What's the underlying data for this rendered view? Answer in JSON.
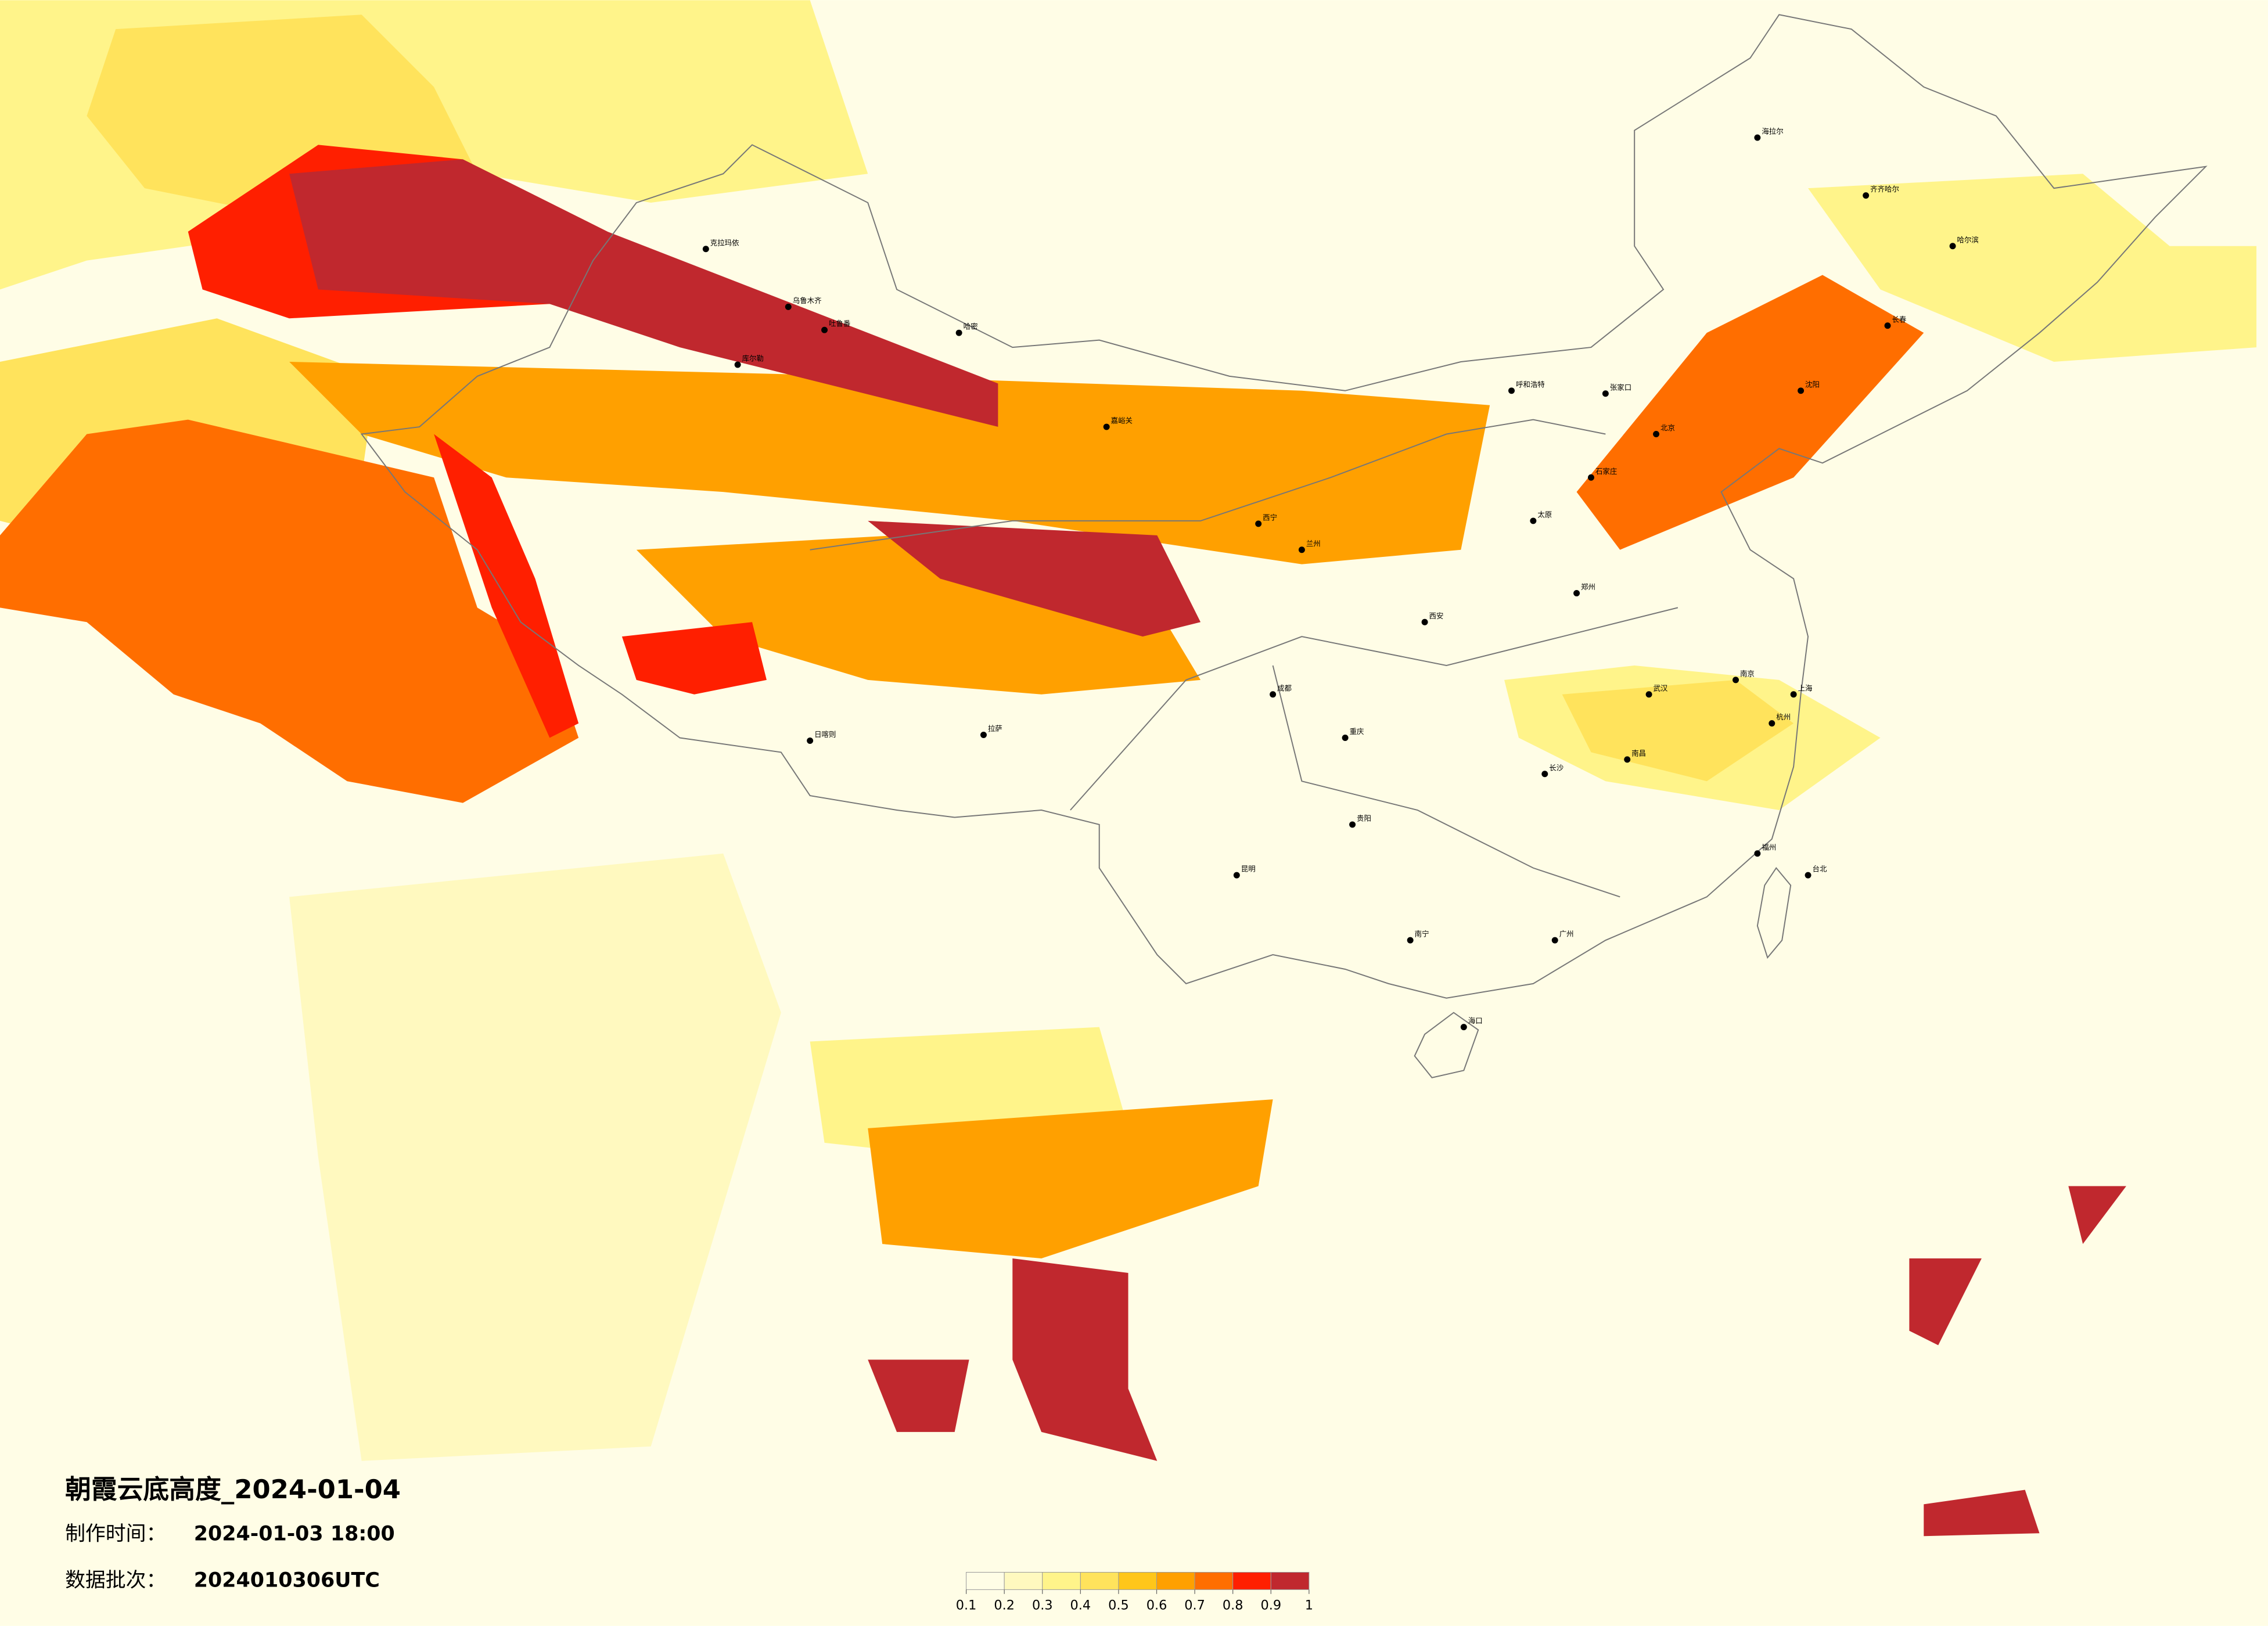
{
  "title": "朝霞云底高度_2024-01-04",
  "info": [
    {
      "label": "制作时间：",
      "value": "2024-01-03 18:00"
    },
    {
      "label": "数据批次：",
      "value": "2024010306UTC"
    }
  ],
  "colorbar": {
    "ticks": [
      0.1,
      0.2,
      0.3,
      0.4,
      0.5,
      0.6,
      0.7,
      0.8,
      0.9,
      1
    ],
    "colors": [
      "#fffde6",
      "#fff9bf",
      "#fff48a",
      "#ffe35c",
      "#ffc61a",
      "#ffa000",
      "#ff6e00",
      "#ff1f00",
      "#c0282e"
    ]
  },
  "cities": [
    "海拉尔",
    "齐齐哈尔",
    "哈尔滨",
    "长春",
    "沈阳",
    "克拉玛依",
    "乌鲁木齐",
    "吐鲁番",
    "哈密",
    "库尔勒",
    "嘉峪关",
    "西宁",
    "兰州",
    "日喀则",
    "拉萨",
    "呼和浩特",
    "张家口",
    "北京",
    "石家庄",
    "太原",
    "西安",
    "郑州",
    "成都",
    "重庆",
    "武汉",
    "南京",
    "上海",
    "杭州",
    "长沙",
    "南昌",
    "贵阳",
    "昆明",
    "福州",
    "台北",
    "南宁",
    "广州",
    "海口"
  ]
}
